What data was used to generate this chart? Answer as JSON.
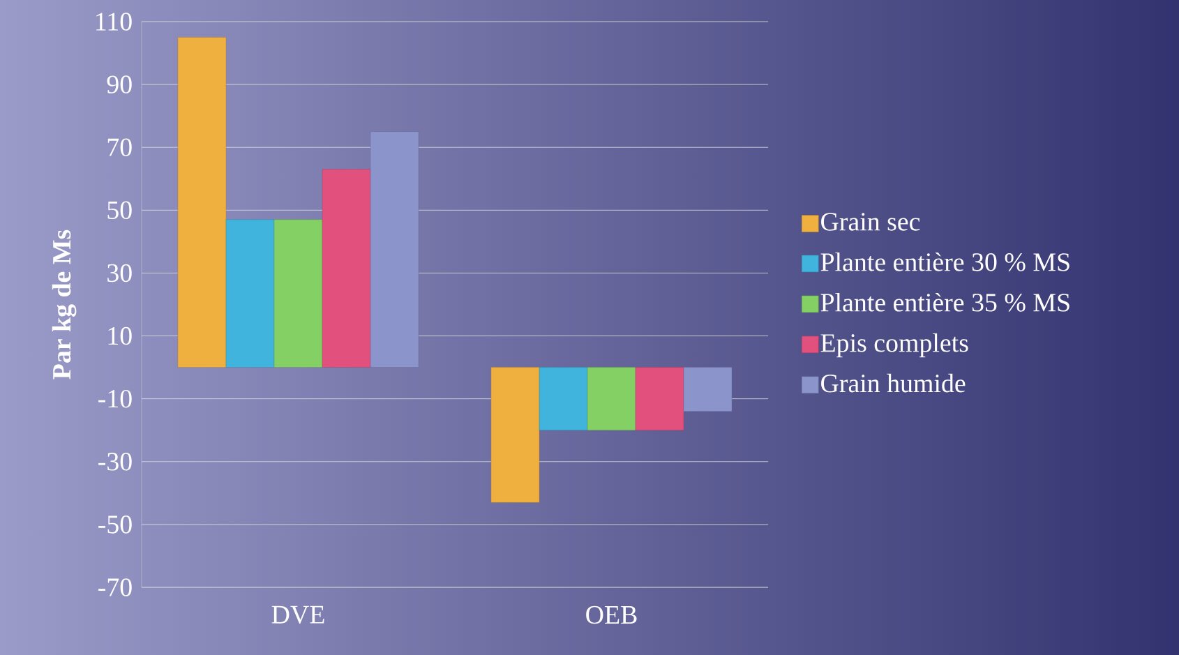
{
  "chart_data": {
    "type": "bar",
    "ylabel": "Par kg de Ms",
    "categories": [
      "DVE",
      "OEB"
    ],
    "series": [
      {
        "name": "Grain sec",
        "color": "#f0b040",
        "values": [
          105,
          -43
        ]
      },
      {
        "name": "Plante entière 30 % MS",
        "color": "#40b4dc",
        "values": [
          47,
          -20
        ]
      },
      {
        "name": "Plante entière 35 % MS",
        "color": "#84d064",
        "values": [
          47,
          -20
        ]
      },
      {
        "name": "Epis complets",
        "color": "#e2507e",
        "values": [
          63,
          -20
        ]
      },
      {
        "name": "Grain humide",
        "color": "#8c94cc",
        "values": [
          75,
          -14
        ]
      }
    ],
    "ylim": [
      -70,
      110
    ],
    "yticks": [
      -70,
      -50,
      -30,
      -10,
      10,
      30,
      50,
      70,
      90,
      110
    ],
    "grid": "y",
    "legend": "right"
  }
}
